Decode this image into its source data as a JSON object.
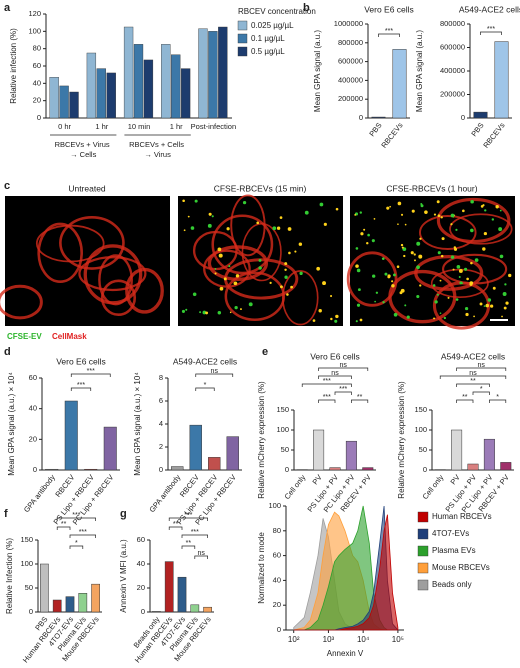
{
  "panel_labels": [
    "a",
    "b",
    "c",
    "d",
    "e",
    "f",
    "g"
  ],
  "images": {
    "titles": [
      "Untreated",
      "CFSE-RBCEVs (15 min)",
      "CFSE-RBCEVs (1 hour)"
    ],
    "legend": [
      "CFSE-EV",
      "CellMask"
    ]
  },
  "chart_data": [
    {
      "type": "bar",
      "y_label": "Relative infection (%)",
      "categories": [
        "0 hr",
        "1 hr",
        "10 min",
        "1 hr",
        "Post-infection"
      ],
      "groups": [
        "RBCEVs + Virus → Cells",
        "RBCEVs + Cells → Virus"
      ],
      "legend_title": "RBCEV concentration",
      "series": [
        {
          "name": "0.025 µg/µL",
          "color": "#8fb6d3",
          "values": [
            47,
            75,
            105,
            85,
            103
          ]
        },
        {
          "name": "0.1 µg/µL",
          "color": "#3c78a8",
          "values": [
            37,
            57,
            85,
            73,
            100
          ]
        },
        {
          "name": "0.5 µg/µL",
          "color": "#1d3c6e",
          "values": [
            30,
            52,
            67,
            57,
            105
          ]
        }
      ],
      "ylim": [
        0,
        120
      ],
      "yticks": [
        0,
        20,
        40,
        60,
        80,
        100,
        120
      ]
    },
    {
      "type": "bar",
      "title": "Vero E6 cells",
      "y_label": "Mean GPA signal (a.u.)",
      "categories": [
        "PBS",
        "RBCEVs"
      ],
      "values": [
        10000,
        730000
      ],
      "colors": [
        "#1d3c6e",
        "#9fc5e8"
      ],
      "ylim": [
        0,
        1000000
      ],
      "yticks": [
        0,
        200000,
        400000,
        600000,
        800000,
        1000000
      ],
      "annotations": [
        "***"
      ]
    },
    {
      "type": "bar",
      "title": "A549-ACE2 cells",
      "y_label": "Mean GPA signal (a.u.)",
      "categories": [
        "PBS",
        "RBCEVs"
      ],
      "values": [
        50000,
        650000
      ],
      "colors": [
        "#1d3c6e",
        "#9fc5e8"
      ],
      "ylim": [
        0,
        800000
      ],
      "yticks": [
        0,
        200000,
        400000,
        600000,
        800000
      ],
      "annotations": [
        "***"
      ]
    },
    {
      "type": "bar",
      "title": "Vero E6 cells",
      "y_label": "Mean GPA signal (a.u.) × 10⁴",
      "categories": [
        "GPA antibody",
        "RBCEV",
        "PS Lipo + RBCEV",
        "PC Lipo + RBCEV"
      ],
      "values": [
        0.5,
        45,
        0.5,
        28
      ],
      "colors": [
        "#9e9e9e",
        "#3c78a8",
        "#c0504d",
        "#8064a2"
      ],
      "ylim": [
        0,
        60
      ],
      "yticks": [
        0,
        20,
        40,
        60
      ],
      "annotations": [
        "***",
        "***"
      ]
    },
    {
      "type": "bar",
      "title": "A549-ACE2 cells",
      "y_label": "Mean GPA signal (a.u.) × 10⁴",
      "categories": [
        "GPA antibody",
        "RBCEV",
        "PS Lipo + RBCEV",
        "PC Lipo + RBCEV"
      ],
      "values": [
        0.3,
        3.9,
        1.1,
        2.9
      ],
      "colors": [
        "#9e9e9e",
        "#3c78a8",
        "#c0504d",
        "#8064a2"
      ],
      "ylim": [
        0,
        8
      ],
      "yticks": [
        0,
        2,
        4,
        6,
        8
      ],
      "annotations": [
        "ns",
        "*"
      ]
    },
    {
      "type": "bar",
      "title": "Vero E6 cells",
      "y_label": "Relative mCherry expression (%)",
      "categories": [
        "Cell only",
        "PV",
        "PS Lipo + PV",
        "PC Lipo + PV",
        "RBCEV + PV"
      ],
      "values": [
        1,
        100,
        6,
        72,
        6
      ],
      "colors": [
        "#7f7f7f",
        "#d9d9d9",
        "#d98080",
        "#9b7bb8",
        "#a0306a"
      ],
      "ylim": [
        0,
        150
      ],
      "yticks": [
        0,
        50,
        100,
        150
      ],
      "annotations": [
        "ns",
        "ns",
        "***",
        "***",
        "***",
        "**"
      ]
    },
    {
      "type": "bar",
      "title": "A549-ACE2 cells",
      "y_label": "Relative mCherry expression (%)",
      "categories": [
        "Cell only",
        "PV",
        "PS Lipo + PV",
        "PC Lipo + PV",
        "RBCEV + PV"
      ],
      "values": [
        1,
        100,
        15,
        77,
        19
      ],
      "colors": [
        "#7f7f7f",
        "#d9d9d9",
        "#d98080",
        "#9b7bb8",
        "#a0306a"
      ],
      "ylim": [
        0,
        150
      ],
      "yticks": [
        0,
        50,
        100,
        150
      ],
      "annotations": [
        "ns",
        "ns",
        "**",
        "**",
        "*",
        "*"
      ]
    },
    {
      "type": "bar",
      "y_label": "Relative Infection (%)",
      "categories": [
        "PBS",
        "Human RBCEVs",
        "4TO7-EVs",
        "Plasma EVs",
        "Mouse RBCEVs"
      ],
      "values": [
        100,
        25,
        32,
        39,
        58
      ],
      "colors": [
        "#bfbfbf",
        "#b22222",
        "#2e5c8a",
        "#8fd18f",
        "#f4a460"
      ],
      "ylim": [
        0,
        150
      ],
      "yticks": [
        0,
        50,
        100,
        150
      ],
      "annotations": [
        "***",
        "**",
        "***",
        "*"
      ]
    },
    {
      "type": "bar",
      "y_label": "Annexin V MFI (a.u.)",
      "categories": [
        "Beads only",
        "Human RBCEVs",
        "4TO7-EVs",
        "Plasma EVs",
        "Mouse RBCEVs"
      ],
      "values": [
        0.5,
        42,
        29,
        6,
        4
      ],
      "colors": [
        "#bfbfbf",
        "#b22222",
        "#2e5c8a",
        "#8fd18f",
        "#f4a460"
      ],
      "ylim": [
        0,
        60
      ],
      "yticks": [
        0,
        20,
        40,
        60
      ],
      "annotations": [
        "***",
        "**",
        "***",
        "**",
        "ns"
      ]
    },
    {
      "type": "area",
      "x_label": "Annexin V",
      "y_label": "Normalized to mode",
      "log_x": true,
      "x": [
        100,
        200,
        300,
        500,
        700,
        1000,
        1500,
        2000,
        3000,
        5000,
        7000,
        10000,
        15000,
        20000,
        30000,
        40000,
        50000,
        70000,
        100000
      ],
      "series": [
        {
          "name": "Human RBCEVs",
          "color": "#c00000",
          "values": [
            0,
            0,
            0,
            0,
            0,
            0,
            0,
            0,
            1,
            2,
            3,
            5,
            10,
            20,
            50,
            80,
            93,
            30,
            2
          ]
        },
        {
          "name": "4TO7-EVs",
          "color": "#1f3f7a",
          "values": [
            0,
            0,
            0,
            0,
            0,
            0,
            0,
            1,
            2,
            3,
            5,
            8,
            15,
            30,
            70,
            100,
            40,
            5,
            0
          ]
        },
        {
          "name": "Plasma EVs",
          "color": "#2ca02c",
          "values": [
            0,
            0,
            2,
            8,
            20,
            35,
            55,
            60,
            65,
            70,
            80,
            100,
            70,
            30,
            8,
            2,
            0,
            0,
            0
          ]
        },
        {
          "name": "Mouse RBCEVs",
          "color": "#ff9f3a",
          "values": [
            0,
            2,
            8,
            30,
            60,
            85,
            95,
            92,
            80,
            60,
            55,
            40,
            15,
            5,
            1,
            0,
            0,
            0,
            0
          ]
        },
        {
          "name": "Beads only",
          "color": "#9e9e9e",
          "values": [
            2,
            10,
            30,
            60,
            90,
            75,
            40,
            15,
            5,
            1,
            0,
            0,
            0,
            0,
            0,
            0,
            0,
            0,
            0
          ]
        }
      ],
      "xlim": [
        60,
        150000
      ],
      "xticks": [
        {
          "value": 100,
          "label": "10²"
        },
        {
          "value": 1000,
          "label": "10³"
        },
        {
          "value": 10000,
          "label": "10⁴"
        },
        {
          "value": 100000,
          "label": "10⁵"
        }
      ],
      "ylim": [
        0,
        100
      ],
      "yticks": [
        0,
        20,
        40,
        60,
        80,
        100
      ]
    }
  ]
}
